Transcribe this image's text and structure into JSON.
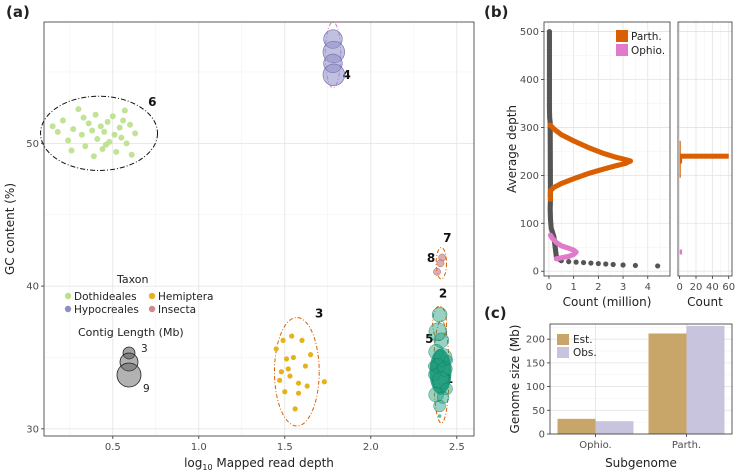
{
  "panels": {
    "a": "(a)",
    "b": "(b)",
    "c": "(c)"
  },
  "colors": {
    "dothideales": "#b9e08a",
    "hemiptera": "#e5b21d",
    "hypocreales": "#8d8ec6",
    "insecta": "#d08a8a",
    "green_main": "#1a9b7a",
    "parth": "#d95f02",
    "ophio": "#e07bcb",
    "gray_dots": "#555555",
    "est": "#c8a66a",
    "obs": "#c8c4dd"
  },
  "chart_data": [
    {
      "id": "a",
      "type": "scatter",
      "xlabel_prefix": "log",
      "xlabel_sub": "10",
      "xlabel_rest": " Mapped read depth",
      "ylabel": "GC content (%)",
      "xlim": [
        0.1,
        2.6
      ],
      "ylim": [
        29.5,
        58.5
      ],
      "xticks": [
        0.5,
        1.0,
        1.5,
        2.0,
        2.5
      ],
      "xtick_labels": [
        "0.5",
        "1.0",
        "1.5",
        "2.0",
        "2.5"
      ],
      "yticks": [
        30,
        40,
        50
      ],
      "ytick_labels": [
        "30",
        "40",
        "50"
      ],
      "legend": {
        "taxon_title": "Taxon",
        "taxa": [
          {
            "name": "Dothideales",
            "color_key": "dothideales"
          },
          {
            "name": "Hemiptera",
            "color_key": "hemiptera"
          },
          {
            "name": "Hypocreales",
            "color_key": "hypocreales"
          },
          {
            "name": "Insecta",
            "color_key": "insecta"
          }
        ],
        "size_title": "Contig Length (Mb)",
        "sizes": [
          {
            "label": "3",
            "value": 3
          },
          {
            "label": "9",
            "value": 9
          }
        ]
      },
      "clusters": [
        {
          "label": "1",
          "cx": 2.41,
          "cy": 34.0,
          "rx": 0.045,
          "ry": 3.6,
          "color_key": "parth"
        },
        {
          "label": "2",
          "cx": 2.4,
          "cy": 37.4,
          "rx": 0.04,
          "ry": 1.2,
          "color_key": "parth"
        },
        {
          "label": "3",
          "cx": 1.57,
          "cy": 34.0,
          "rx": 0.13,
          "ry": 3.8,
          "color_key": "parth"
        },
        {
          "label": "4",
          "cx": 1.78,
          "cy": 56.2,
          "rx": 0.045,
          "ry": 2.3,
          "color_key": "ophio"
        },
        {
          "label": "5",
          "cx": 2.37,
          "cy": 34.5,
          "rx": 0.02,
          "ry": 1.8,
          "color_key": "parth"
        },
        {
          "label": "6",
          "cx": 0.42,
          "cy": 50.7,
          "rx": 0.34,
          "ry": 2.6,
          "color_key": "black"
        },
        {
          "label": "7",
          "cx": 2.41,
          "cy": 41.6,
          "rx": 0.03,
          "ry": 1.1,
          "color_key": "parth"
        },
        {
          "label": "8",
          "cx": 2.41,
          "cy": 41.6,
          "rx": 0.03,
          "ry": 1.1,
          "color_key": "parth"
        }
      ],
      "points": {
        "dothideales": [
          [
            0.15,
            51.2
          ],
          [
            0.18,
            50.8
          ],
          [
            0.21,
            51.6
          ],
          [
            0.24,
            50.2
          ],
          [
            0.27,
            51.0
          ],
          [
            0.3,
            52.4
          ],
          [
            0.32,
            50.6
          ],
          [
            0.34,
            49.8
          ],
          [
            0.36,
            51.4
          ],
          [
            0.38,
            50.9
          ],
          [
            0.4,
            52.0
          ],
          [
            0.41,
            50.3
          ],
          [
            0.43,
            51.2
          ],
          [
            0.44,
            49.6
          ],
          [
            0.45,
            50.8
          ],
          [
            0.47,
            51.5
          ],
          [
            0.48,
            50.1
          ],
          [
            0.5,
            51.9
          ],
          [
            0.51,
            50.6
          ],
          [
            0.52,
            49.4
          ],
          [
            0.54,
            51.1
          ],
          [
            0.55,
            50.4
          ],
          [
            0.57,
            52.3
          ],
          [
            0.58,
            50.0
          ],
          [
            0.6,
            51.3
          ],
          [
            0.61,
            49.2
          ],
          [
            0.63,
            50.7
          ],
          [
            0.46,
            49.9
          ],
          [
            0.39,
            49.1
          ],
          [
            0.33,
            51.8
          ],
          [
            0.26,
            49.5
          ],
          [
            0.56,
            51.6
          ]
        ],
        "hemiptera": [
          [
            1.45,
            35.6
          ],
          [
            1.47,
            33.4
          ],
          [
            1.49,
            36.2
          ],
          [
            1.5,
            32.6
          ],
          [
            1.52,
            34.2
          ],
          [
            1.53,
            33.7
          ],
          [
            1.55,
            35.0
          ],
          [
            1.56,
            31.4
          ],
          [
            1.58,
            33.2
          ],
          [
            1.6,
            36.2
          ],
          [
            1.62,
            34.4
          ],
          [
            1.63,
            33.0
          ],
          [
            1.65,
            35.2
          ],
          [
            1.58,
            32.5
          ],
          [
            1.73,
            33.3
          ],
          [
            1.51,
            34.9
          ],
          [
            1.48,
            34.0
          ],
          [
            1.54,
            36.5
          ]
        ],
        "hypocreales": [
          [
            1.78,
            57.3,
            6
          ],
          [
            1.785,
            56.4,
            7
          ],
          [
            1.78,
            55.6,
            6
          ],
          [
            1.785,
            54.8,
            7
          ]
        ],
        "insecta": [
          [
            2.415,
            42.0,
            2
          ],
          [
            2.405,
            41.6,
            2
          ],
          [
            2.385,
            41.0,
            2
          ]
        ],
        "green_big": [
          [
            2.4,
            38.0,
            5
          ],
          [
            2.39,
            36.8,
            6
          ],
          [
            2.41,
            36.2,
            5
          ],
          [
            2.38,
            35.4,
            5
          ],
          [
            2.42,
            35.0,
            6
          ],
          [
            2.39,
            34.4,
            5
          ],
          [
            2.43,
            34.2,
            5
          ],
          [
            2.37,
            33.8,
            4
          ],
          [
            2.41,
            33.4,
            6
          ],
          [
            2.44,
            32.8,
            4
          ],
          [
            2.38,
            32.4,
            5
          ],
          [
            2.42,
            32.2,
            4
          ],
          [
            2.4,
            31.6,
            4
          ],
          [
            2.45,
            34.8,
            3
          ],
          [
            2.36,
            34.4,
            3
          ]
        ]
      },
      "small_points": [
        [
          2.4,
          30.9
        ]
      ],
      "size_note": "contig sizes drawn as scaled circles"
    },
    {
      "id": "b_left",
      "type": "line",
      "xlabel": "Count (million)",
      "ylabel": "Average depth",
      "xlim": [
        -0.2,
        4.9
      ],
      "ylim": [
        -10,
        520
      ],
      "xticks": [
        0,
        1,
        2,
        3,
        4
      ],
      "xtick_labels": [
        "0",
        "1",
        "2",
        "3",
        "4"
      ],
      "yticks": [
        0,
        100,
        200,
        300,
        400,
        500
      ],
      "ytick_labels": [
        "0",
        "100",
        "200",
        "300",
        "400",
        "500"
      ],
      "legend": [
        {
          "name": "Parth.",
          "color_key": "parth"
        },
        {
          "name": "Ophio.",
          "color_key": "ophio"
        }
      ],
      "series": [
        {
          "name": "gray",
          "points": [
            [
              0.02,
              500
            ],
            [
              0.02,
              480
            ],
            [
              0.02,
              460
            ],
            [
              0.02,
              440
            ],
            [
              0.02,
              420
            ],
            [
              0.02,
              400
            ],
            [
              0.02,
              380
            ],
            [
              0.02,
              360
            ],
            [
              0.02,
              340
            ],
            [
              0.03,
              320
            ],
            [
              0.05,
              310
            ],
            [
              0.06,
              150
            ],
            [
              0.05,
              130
            ],
            [
              0.06,
              110
            ],
            [
              0.09,
              90
            ],
            [
              0.2,
              72
            ],
            [
              0.3,
              30
            ],
            [
              0.5,
              22
            ],
            [
              0.8,
              20
            ],
            [
              1.1,
              19
            ],
            [
              1.4,
              18
            ],
            [
              1.7,
              17
            ],
            [
              2.0,
              16
            ],
            [
              2.3,
              15
            ],
            [
              2.6,
              14
            ],
            [
              3.0,
              13
            ],
            [
              3.5,
              12
            ],
            [
              4.4,
              11
            ]
          ]
        },
        {
          "name": "Parth.",
          "points": [
            [
              0.05,
              305
            ],
            [
              0.2,
              297
            ],
            [
              0.5,
              285
            ],
            [
              1.0,
              272
            ],
            [
              1.6,
              258
            ],
            [
              2.2,
              246
            ],
            [
              2.7,
              238
            ],
            [
              3.1,
              233
            ],
            [
              3.3,
              230
            ],
            [
              3.1,
              225
            ],
            [
              2.7,
              220
            ],
            [
              2.2,
              213
            ],
            [
              1.6,
              204
            ],
            [
              1.0,
              193
            ],
            [
              0.5,
              183
            ],
            [
              0.2,
              175
            ],
            [
              0.06,
              168
            ],
            [
              0.05,
              160
            ],
            [
              0.06,
              150
            ]
          ]
        },
        {
          "name": "Ophio.",
          "points": [
            [
              0.06,
              75
            ],
            [
              0.15,
              68
            ],
            [
              0.3,
              60
            ],
            [
              0.5,
              53
            ],
            [
              0.8,
              48
            ],
            [
              1.0,
              44
            ],
            [
              1.1,
              40
            ],
            [
              1.0,
              35
            ],
            [
              0.8,
              31
            ],
            [
              0.5,
              28
            ],
            [
              0.3,
              26
            ]
          ]
        }
      ]
    },
    {
      "id": "b_right",
      "type": "bar",
      "xlabel": "Count",
      "xlim": [
        -2,
        64
      ],
      "xticks": [
        0,
        20,
        40,
        60
      ],
      "xtick_labels": [
        "0",
        "20",
        "40",
        "60"
      ],
      "bars": [
        {
          "depth": 240,
          "count": 60,
          "color_key": "parth"
        },
        {
          "depth": 230,
          "count": 3,
          "color_key": "parth"
        },
        {
          "depth": 40,
          "count": 3,
          "color_key": "ophio"
        }
      ]
    },
    {
      "id": "c",
      "type": "bar",
      "xlabel": "Subgenome",
      "ylabel": "Genome size (Mb)",
      "categories": [
        "Ophio.",
        "Parth."
      ],
      "ylim": [
        0,
        232
      ],
      "yticks": [
        0,
        50,
        100,
        150,
        200
      ],
      "ytick_labels": [
        "0",
        "50",
        "100",
        "150",
        "200"
      ],
      "series": [
        {
          "name": "Est.",
          "color_key": "est",
          "values": [
            32,
            212
          ]
        },
        {
          "name": "Obs.",
          "color_key": "obs",
          "values": [
            27,
            228
          ]
        }
      ]
    }
  ]
}
